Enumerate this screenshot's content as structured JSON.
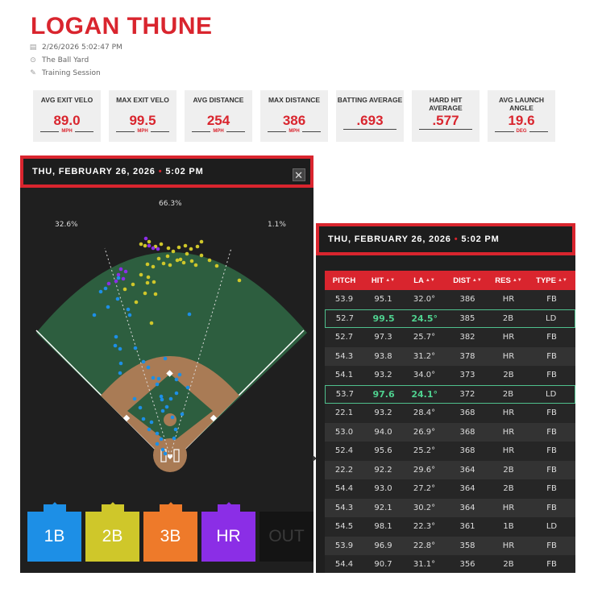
{
  "player": {
    "name": "LOGAN THUNE",
    "date": "2/26/2026 5:02:47 PM",
    "location": "The Ball Yard",
    "session": "Training Session"
  },
  "stats": [
    {
      "label": "AVG EXIT VELO",
      "value": "89.0",
      "unit": "MPH"
    },
    {
      "label": "MAX EXIT VELO",
      "value": "99.5",
      "unit": "MPH"
    },
    {
      "label": "AVG DISTANCE",
      "value": "254",
      "unit": "MPH"
    },
    {
      "label": "MAX DISTANCE",
      "value": "386",
      "unit": "MPH"
    },
    {
      "label": "BATTING AVERAGE",
      "value": ".693",
      "unit": ""
    },
    {
      "label": "HARD HIT AVERAGE",
      "value": ".577",
      "unit": ""
    },
    {
      "label": "AVG LAUNCH ANGLE",
      "value": "19.6",
      "unit": "DEG"
    }
  ],
  "spray_panel": {
    "header_date": "THU, FEBRUARY 26, 2026",
    "header_dot": "•",
    "header_time": "5:02 PM",
    "close_label": "✕",
    "pct_left": "32.6%",
    "pct_center": "66.3%",
    "pct_right": "1.1%",
    "buttons": {
      "b1": "1B",
      "b2": "2B",
      "b3": "3B",
      "hr": "HR",
      "out": "OUT"
    }
  },
  "colors": {
    "accent": "#d9252e",
    "single": "#1d8fe6",
    "double": "#cfc72a",
    "triple": "#ee7a2a",
    "homerun": "#8b2ee6",
    "highlight": "#4fd18f"
  },
  "table_panel": {
    "header_date": "THU, FEBRUARY 26, 2026",
    "header_dot": "•",
    "header_time": "5:02 PM",
    "columns": [
      "PITCH",
      "HIT",
      "LA",
      "DIST",
      "RES",
      "TYPE"
    ],
    "rows": [
      {
        "pitch": "53.9",
        "hit": "95.1",
        "la": "32.0°",
        "dist": "386",
        "res": "HR",
        "type": "FB",
        "hl": false
      },
      {
        "pitch": "52.7",
        "hit": "99.5",
        "la": "24.5°",
        "dist": "385",
        "res": "2B",
        "type": "LD",
        "hl": true
      },
      {
        "pitch": "52.7",
        "hit": "97.3",
        "la": "25.7°",
        "dist": "382",
        "res": "HR",
        "type": "FB",
        "hl": false
      },
      {
        "pitch": "54.3",
        "hit": "93.8",
        "la": "31.2°",
        "dist": "378",
        "res": "HR",
        "type": "FB",
        "hl": false
      },
      {
        "pitch": "54.1",
        "hit": "93.2",
        "la": "34.0°",
        "dist": "373",
        "res": "2B",
        "type": "FB",
        "hl": false
      },
      {
        "pitch": "53.7",
        "hit": "97.6",
        "la": "24.1°",
        "dist": "372",
        "res": "2B",
        "type": "LD",
        "hl": true
      },
      {
        "pitch": "22.1",
        "hit": "93.2",
        "la": "28.4°",
        "dist": "368",
        "res": "HR",
        "type": "FB",
        "hl": false
      },
      {
        "pitch": "53.0",
        "hit": "94.0",
        "la": "26.9°",
        "dist": "368",
        "res": "HR",
        "type": "FB",
        "hl": false
      },
      {
        "pitch": "52.4",
        "hit": "95.6",
        "la": "25.2°",
        "dist": "368",
        "res": "HR",
        "type": "FB",
        "hl": false
      },
      {
        "pitch": "22.2",
        "hit": "92.2",
        "la": "29.6°",
        "dist": "364",
        "res": "2B",
        "type": "FB",
        "hl": false
      },
      {
        "pitch": "54.4",
        "hit": "93.0",
        "la": "27.2°",
        "dist": "364",
        "res": "2B",
        "type": "FB",
        "hl": false
      },
      {
        "pitch": "54.3",
        "hit": "92.1",
        "la": "30.2°",
        "dist": "364",
        "res": "HR",
        "type": "FB",
        "hl": false
      },
      {
        "pitch": "54.5",
        "hit": "98.1",
        "la": "22.3°",
        "dist": "361",
        "res": "1B",
        "type": "LD",
        "hl": false
      },
      {
        "pitch": "53.9",
        "hit": "96.9",
        "la": "22.8°",
        "dist": "358",
        "res": "HR",
        "type": "FB",
        "hl": false
      },
      {
        "pitch": "54.4",
        "hit": "90.7",
        "la": "31.1°",
        "dist": "356",
        "res": "2B",
        "type": "FB",
        "hl": false
      }
    ]
  }
}
